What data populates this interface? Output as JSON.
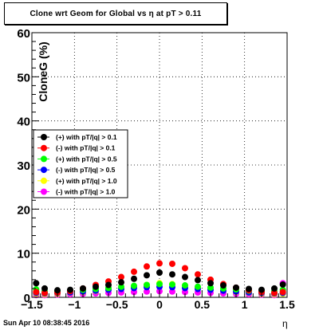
{
  "title": "Clone wrt Geom for Global vs   η at pT > 0.11",
  "footer_text": "Sun Apr 10 08:38:45 2016",
  "chart_data": {
    "type": "scatter",
    "xlabel": "η",
    "ylabel": "CloneG (%)",
    "xlim": [
      -1.5,
      1.5
    ],
    "ylim": [
      0,
      60
    ],
    "x_ticks": [
      "−1.5",
      "−1",
      "−0.5",
      "0",
      "0.5",
      "1",
      "1.5"
    ],
    "y_ticks": [
      "0",
      "10",
      "20",
      "30",
      "40",
      "50",
      "60"
    ],
    "grid": true,
    "legend_position": "left-middle",
    "series": [
      {
        "name": "(+) with pT/|q| > 0.1",
        "color": "#000000",
        "x": [
          -1.45,
          -1.35,
          -1.2,
          -1.05,
          -0.9,
          -0.75,
          -0.6,
          -0.45,
          -0.3,
          -0.15,
          0,
          0.15,
          0.3,
          0.45,
          0.6,
          0.75,
          0.9,
          1.05,
          1.2,
          1.35,
          1.45
        ],
        "y": [
          3.2,
          2.0,
          1.6,
          1.7,
          2.0,
          2.4,
          2.8,
          3.4,
          4.2,
          5.0,
          5.6,
          5.2,
          4.6,
          3.9,
          3.2,
          2.7,
          2.2,
          1.9,
          1.7,
          2.0,
          2.9
        ]
      },
      {
        "name": "(-) with pT/|q| > 0.1",
        "color": "#ff0000",
        "x": [
          -1.45,
          -1.35,
          -1.2,
          -1.05,
          -0.9,
          -0.75,
          -0.6,
          -0.45,
          -0.3,
          -0.15,
          0,
          0.15,
          0.3,
          0.45,
          0.6,
          0.75,
          0.9,
          1.05,
          1.2,
          1.35,
          1.45
        ],
        "y": [
          1.2,
          1.0,
          1.1,
          1.4,
          2.0,
          2.8,
          3.6,
          4.6,
          5.8,
          7.0,
          7.7,
          7.6,
          6.6,
          5.2,
          4.0,
          3.0,
          2.2,
          1.6,
          1.2,
          1.0,
          1.2
        ]
      },
      {
        "name": "(+) with pT/|q| > 0.5",
        "color": "#00ff00",
        "x": [
          -1.45,
          -1.35,
          -1.2,
          -1.05,
          -0.9,
          -0.75,
          -0.6,
          -0.45,
          -0.3,
          -0.15,
          0,
          0.15,
          0.3,
          0.45,
          0.6,
          0.75,
          0.9,
          1.05,
          1.2,
          1.35,
          1.45
        ],
        "y": [
          1.8,
          1.4,
          1.3,
          1.5,
          1.7,
          1.9,
          2.1,
          2.4,
          2.6,
          2.8,
          3.0,
          2.9,
          2.7,
          2.4,
          2.2,
          2.0,
          1.8,
          1.5,
          1.3,
          1.4,
          1.7
        ]
      },
      {
        "name": "(-) with pT/|q| > 0.5",
        "color": "#0000ff",
        "x": [
          -1.45,
          -1.35,
          -1.2,
          -1.05,
          -0.9,
          -0.75,
          -0.6,
          -0.45,
          -0.3,
          -0.15,
          0,
          0.15,
          0.3,
          0.45,
          0.6,
          0.75,
          0.9,
          1.05,
          1.2,
          1.35,
          1.45
        ],
        "y": [
          1.0,
          0.9,
          1.0,
          1.1,
          1.3,
          1.5,
          1.7,
          1.9,
          2.1,
          2.3,
          2.4,
          2.3,
          2.1,
          1.9,
          1.7,
          1.5,
          1.3,
          1.1,
          1.0,
          0.9,
          1.0
        ]
      },
      {
        "name": "(+) with pT/|q| > 1.0",
        "color": "#ffff00",
        "x": [
          -1.45,
          -1.35,
          -1.2,
          -1.05,
          -0.9,
          -0.75,
          -0.6,
          -0.45,
          -0.3,
          -0.15,
          0,
          0.15,
          0.3,
          0.45,
          0.6,
          0.75,
          0.9,
          1.05,
          1.2,
          1.35,
          1.45
        ],
        "y": [
          0.8,
          0.7,
          0.8,
          1.0,
          1.2,
          1.4,
          1.7,
          2.0,
          2.4,
          2.8,
          3.2,
          3.0,
          2.6,
          2.2,
          1.8,
          1.5,
          1.2,
          1.0,
          0.8,
          0.7,
          0.8
        ]
      },
      {
        "name": "(-) with pT/|q| > 1.0",
        "color": "#ff00ff",
        "x": [
          -1.45,
          -1.35,
          -1.2,
          -1.05,
          -0.9,
          -0.75,
          -0.6,
          -0.45,
          -0.3,
          -0.15,
          0,
          0.15,
          0.3,
          0.45,
          0.6,
          0.75,
          0.9,
          1.05,
          1.2,
          1.35,
          1.45
        ],
        "y": [
          0.5,
          0.5,
          0.6,
          0.7,
          0.8,
          0.9,
          1.0,
          1.1,
          1.2,
          1.3,
          1.4,
          1.3,
          1.2,
          1.1,
          1.0,
          0.9,
          0.8,
          0.7,
          0.6,
          0.5,
          3.2
        ]
      }
    ]
  }
}
